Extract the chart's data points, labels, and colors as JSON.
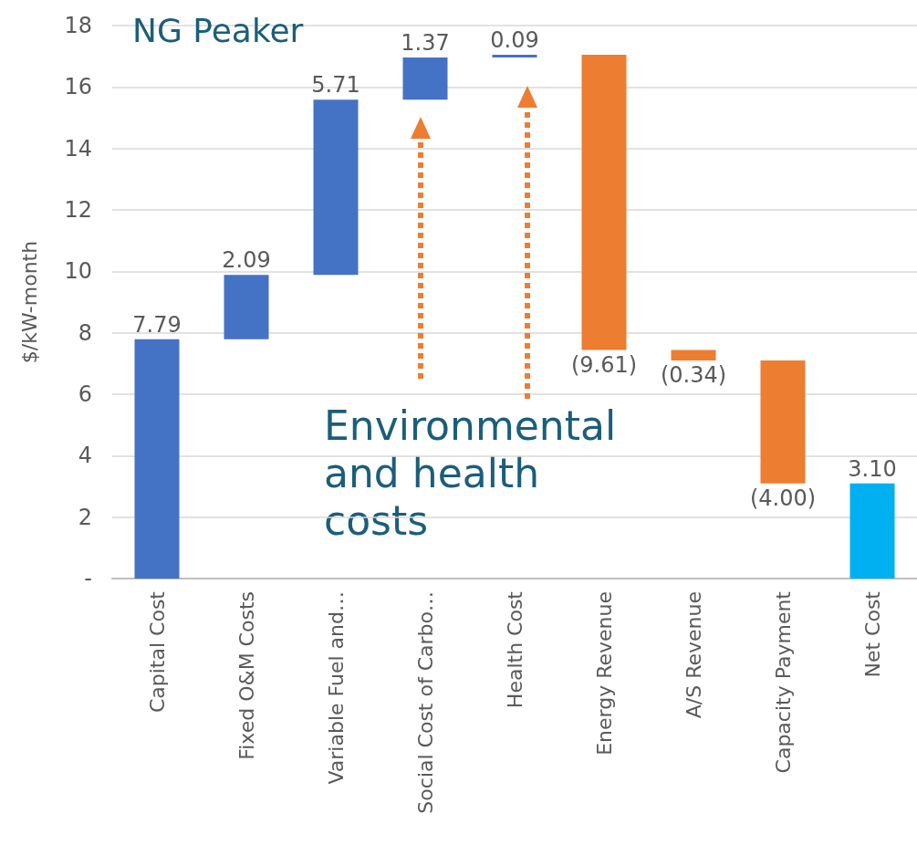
{
  "chart_data": {
    "type": "bar",
    "title": "NG Peaker",
    "ylabel": "$/kW-month",
    "categories": [
      "Capital Cost",
      "Fixed O&M Costs",
      "Variable Fuel and…",
      "Social Cost of Carbo…",
      "Health Cost",
      "Energy Revenue",
      "A/S Revenue",
      "Capacity Payment",
      "Net Cost"
    ],
    "values": [
      7.79,
      2.09,
      5.71,
      1.37,
      0.09,
      -9.61,
      -0.34,
      -4.0,
      3.1
    ],
    "base": [
      0,
      7.79,
      9.88,
      15.59,
      16.96,
      17.05,
      7.44,
      7.1,
      0
    ],
    "colors": [
      "#4472c4",
      "#4472c4",
      "#4472c4",
      "#4472c4",
      "#4472c4",
      "#ed7d31",
      "#ed7d31",
      "#ed7d31",
      "#00b0f0"
    ],
    "value_labels": [
      "7.79",
      "2.09",
      "5.71",
      "1.37",
      "0.09",
      "(9.61)",
      "(0.34)",
      "(4.00)",
      "3.10"
    ],
    "ylim": [
      0,
      18
    ],
    "yticks": [
      {
        "value": 0,
        "label": "-"
      },
      2,
      4,
      6,
      8,
      10,
      12,
      14,
      16,
      18
    ],
    "grid": "y",
    "annotations": [
      "Environmental and health costs"
    ]
  }
}
